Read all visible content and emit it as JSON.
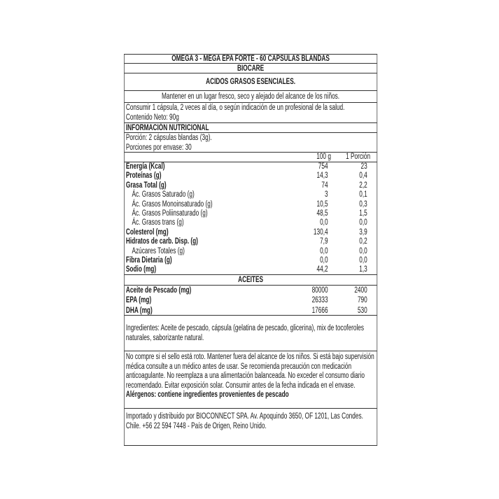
{
  "title": "OMEGA 3 - MEGA EPA FORTE - 60 CAPSULAS BLANDAS",
  "brand": "BIOCARE",
  "subtitle": "ACIDOS GRASOS ESENCIALES.",
  "storage": "Mantener en un lugar fresco, seco y alejado del alcance de los niños.",
  "usage": "Consumir 1 cápsula, 2 veces al día, o según indicación de un profesional de la salud.",
  "net_content": "Contenido Neto: 90g",
  "nutrition_heading": "INFORMACIÓN NUTRICIONAL",
  "serving": "Porción: 2 cápsulas blandas (3g).",
  "servings_per_container": "Porciones por envase: 30",
  "col_headers": [
    "100 g",
    "1 Porción"
  ],
  "nutrients": [
    {
      "name": "Energía (Kcal)",
      "v100": "754",
      "vport": "23",
      "bold": true
    },
    {
      "name": "Proteínas (g)",
      "v100": "14,3",
      "vport": "0,4",
      "bold": true
    },
    {
      "name": "Grasa Total (g)",
      "v100": "74",
      "vport": "2,2",
      "bold": true
    },
    {
      "name": "Ác. Grasos Saturado (g)",
      "v100": "3",
      "vport": "0,1",
      "bold": false
    },
    {
      "name": "Ác. Grasos Monoinsaturado (g)",
      "v100": "10,5",
      "vport": "0,3",
      "bold": false
    },
    {
      "name": "Ác. Grasos Poliinsaturado (g)",
      "v100": "48,5",
      "vport": "1,5",
      "bold": false
    },
    {
      "name": "Ác. Grasos trans (g)",
      "v100": "0,0",
      "vport": "0,0",
      "bold": false
    },
    {
      "name": "Colesterol (mg)",
      "v100": "130,4",
      "vport": "3,9",
      "bold": true
    },
    {
      "name": "Hidratos de carb. Disp. (g)",
      "v100": "7,9",
      "vport": "0,2",
      "bold": true
    },
    {
      "name": "Azúcares Totales (g)",
      "v100": "0,0",
      "vport": "0,0",
      "bold": false
    },
    {
      "name": "Fibra Dietaria (g)",
      "v100": "0,0",
      "vport": "0,0",
      "bold": true
    },
    {
      "name": "Sodio (mg)",
      "v100": "44,2",
      "vport": "1,3",
      "bold": true
    }
  ],
  "oils_heading": "ACEITES",
  "oils": [
    {
      "name": "Aceite de Pescado (mg)",
      "v100": "80000",
      "vport": "2400"
    },
    {
      "name": "EPA (mg)",
      "v100": "26333",
      "vport": "790"
    },
    {
      "name": "DHA (mg)",
      "v100": "17666",
      "vport": "530"
    }
  ],
  "ingredients": "Ingredientes: Aceite de pescado, cápsula (gelatina de pescado, glicerina), mix de tocoferoles naturales, saborizante natural.",
  "warnings": "No compre si el sello está roto. Mantener fuera del alcance de los niños. Si está bajo supervisión médica consulte a un médico antes de usar. Se recomienda precaución con medicación anticoagulante. No reemplaza a una alimentación balanceada. No exceder el consumo diario recomendado. Evitar exposición solar. Consumir antes de la fecha indicada en el envase.",
  "allergens": "Alérgenos: contiene ingredientes provenientes de pescado",
  "importer": "Importado y distribuido por BIOCONNECT SPA. Av. Apoquindo 3650, OF 1201, Las Condes. Chile. +56 22 594 7448 - País de Origen, Reino Unido."
}
